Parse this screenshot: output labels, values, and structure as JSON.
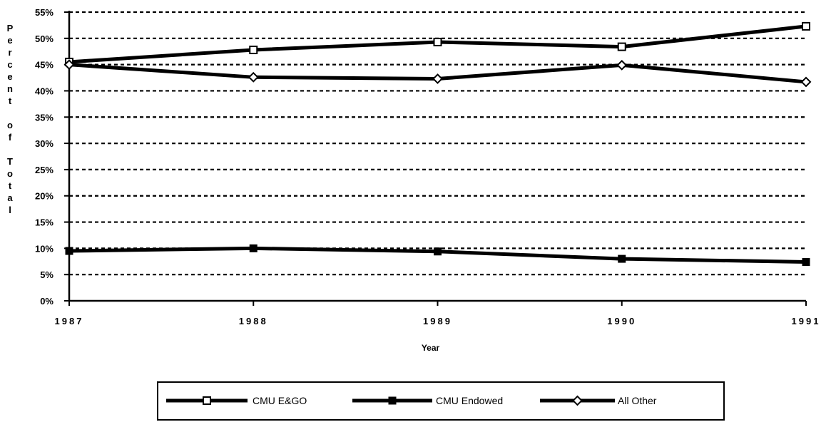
{
  "chart_data": {
    "type": "line",
    "x": [
      1987,
      1988,
      1989,
      1990,
      1991
    ],
    "xtick_labels": [
      "1987",
      "1988",
      "1989",
      "1990",
      "1991"
    ],
    "ytick_labels": [
      "0%",
      "5%",
      "10%",
      "15%",
      "20%",
      "25%",
      "30%",
      "35%",
      "40%",
      "45%",
      "50%",
      "55%"
    ],
    "ylim": [
      0,
      55
    ],
    "xlabel": "Year",
    "ylabel": "Percent of Total",
    "grid": "horizontal dashed",
    "legend_position": "bottom",
    "series": [
      {
        "name": "CMU E&GO",
        "marker": "hollow-square",
        "values": [
          45.5,
          47.8,
          49.3,
          48.4,
          52.3
        ]
      },
      {
        "name": "CMU Endowed",
        "marker": "filled-square",
        "values": [
          9.5,
          10.0,
          9.4,
          8.0,
          7.4
        ]
      },
      {
        "name": "All Other",
        "marker": "hollow-diamond",
        "values": [
          45.0,
          42.6,
          42.3,
          44.9,
          41.7
        ]
      }
    ],
    "line_color": "#000000"
  }
}
